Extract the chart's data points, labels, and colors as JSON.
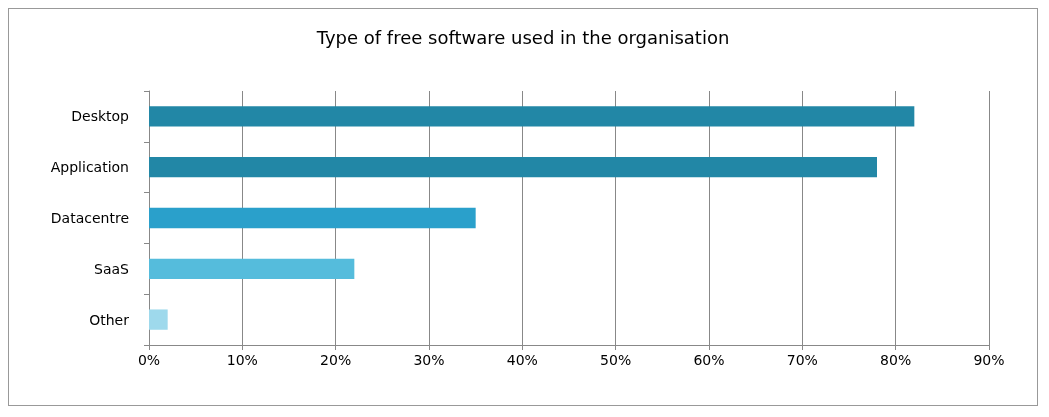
{
  "chart_data": {
    "type": "bar",
    "orientation": "horizontal",
    "title": "Type of free software used in the organisation",
    "categories": [
      "Desktop",
      "Application",
      "Datacentre",
      "SaaS",
      "Other"
    ],
    "values": [
      82,
      78,
      35,
      22,
      2
    ],
    "colors": [
      "#2287a6",
      "#2287a6",
      "#2aa0cb",
      "#55bcdc",
      "#9ed9ec"
    ],
    "xlim": [
      0,
      90
    ],
    "xticks": [
      {
        "value": 0,
        "label": "0%"
      },
      {
        "value": 10,
        "label": "10%"
      },
      {
        "value": 20,
        "label": "20%"
      },
      {
        "value": 30,
        "label": "30%"
      },
      {
        "value": 40,
        "label": "40%"
      },
      {
        "value": 50,
        "label": "50%"
      },
      {
        "value": 60,
        "label": "60%"
      },
      {
        "value": 70,
        "label": "70%"
      },
      {
        "value": 80,
        "label": "80%"
      },
      {
        "value": 90,
        "label": "90%"
      }
    ],
    "grid": "x"
  }
}
